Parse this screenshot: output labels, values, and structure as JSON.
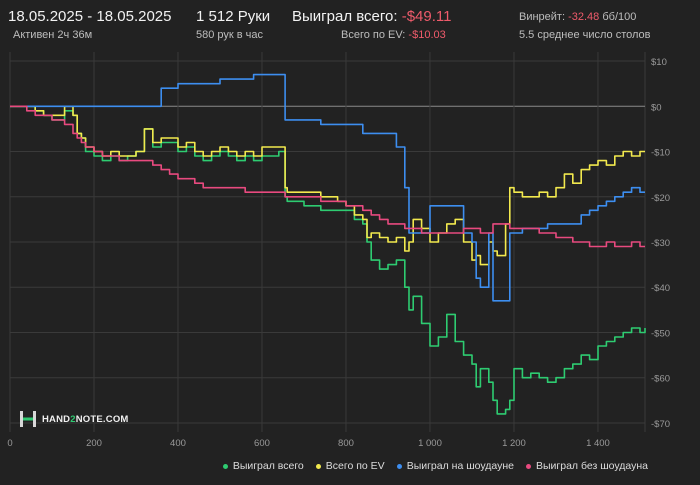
{
  "header": {
    "date_range": "18.05.2025 - 18.05.2025",
    "active": "Активен 2ч 36м",
    "hands": "1 512 Руки",
    "hands_per_hour": "580 рук в час",
    "won_label": "Выиграл всего:",
    "won_value": "-$49.11",
    "ev_label": "Всего по EV:",
    "ev_value": "-$10.03",
    "winrate_label": "Винрейт:",
    "winrate_value": "-32.48",
    "winrate_unit": "бб/100",
    "tables": "5.5 среднее число столов"
  },
  "logo": {
    "part1": "HAND",
    "part2": "2",
    "part3": "NOTE.COM"
  },
  "colors": {
    "background": "#222222",
    "grid": "#3a3a3a",
    "zero_line": "#8a8a8a",
    "total": "#2ecc71",
    "ev": "#f2e94e",
    "showdown": "#3d8ef0",
    "nonshowdown": "#e84a7f",
    "negative": "#ef5b6b"
  },
  "chart_data": {
    "type": "line",
    "x_ticks": [
      0,
      200,
      400,
      600,
      800,
      1000,
      1200,
      1400
    ],
    "x_tick_labels": [
      "0",
      "200",
      "400",
      "600",
      "800",
      "1 000",
      "1 200",
      "1 400"
    ],
    "xlim": [
      0,
      1512
    ],
    "y_ticks": [
      10,
      0,
      -10,
      -20,
      -30,
      -40,
      -50,
      -60,
      -70
    ],
    "y_tick_labels": [
      "$10",
      "$0",
      "-$10",
      "-$20",
      "-$30",
      "-$40",
      "-$50",
      "-$60",
      "-$70"
    ],
    "ylim": [
      -72,
      12
    ],
    "grid": true,
    "legend_position": "bottom-right",
    "series": [
      {
        "name": "Выиграл всего",
        "color": "#2ecc71",
        "x": [
          0,
          40,
          60,
          80,
          100,
          130,
          150,
          160,
          170,
          180,
          200,
          220,
          240,
          260,
          280,
          300,
          320,
          340,
          360,
          380,
          400,
          420,
          440,
          460,
          480,
          500,
          520,
          540,
          560,
          580,
          600,
          620,
          640,
          655,
          660,
          700,
          740,
          780,
          800,
          820,
          840,
          850,
          860,
          880,
          900,
          920,
          940,
          950,
          960,
          980,
          1000,
          1020,
          1040,
          1060,
          1080,
          1100,
          1110,
          1120,
          1140,
          1150,
          1160,
          1180,
          1190,
          1200,
          1220,
          1240,
          1260,
          1280,
          1300,
          1320,
          1340,
          1360,
          1380,
          1400,
          1420,
          1440,
          1460,
          1480,
          1500,
          1512
        ],
        "y": [
          0,
          0,
          -1,
          -2,
          -3,
          -1,
          -2,
          -6,
          -7,
          -10,
          -11,
          -12,
          -11,
          -12,
          -11,
          -10,
          -5,
          -9,
          -8,
          -8,
          -10,
          -9,
          -11,
          -12,
          -11,
          -10,
          -11,
          -12,
          -11,
          -12,
          -11,
          -11,
          -10,
          -20,
          -21,
          -22,
          -23,
          -23,
          -23,
          -25,
          -26,
          -30,
          -34,
          -36,
          -35,
          -34,
          -40,
          -45,
          -42,
          -48,
          -53,
          -51,
          -46,
          -52,
          -55,
          -57,
          -62,
          -58,
          -61,
          -65,
          -68,
          -67,
          -65,
          -58,
          -60,
          -59,
          -60,
          -61,
          -60,
          -58,
          -57,
          -55,
          -56,
          -53,
          -52,
          -51,
          -50,
          -49,
          -50,
          -49
        ]
      },
      {
        "name": "Всего по EV",
        "color": "#f2e94e",
        "x": [
          0,
          40,
          60,
          80,
          100,
          130,
          150,
          160,
          170,
          180,
          200,
          220,
          240,
          260,
          280,
          300,
          320,
          340,
          360,
          380,
          400,
          420,
          440,
          460,
          480,
          500,
          520,
          540,
          560,
          580,
          600,
          620,
          640,
          655,
          660,
          700,
          740,
          780,
          800,
          820,
          840,
          850,
          860,
          880,
          900,
          920,
          940,
          950,
          960,
          980,
          1000,
          1020,
          1040,
          1060,
          1080,
          1100,
          1110,
          1120,
          1140,
          1150,
          1160,
          1180,
          1190,
          1200,
          1220,
          1240,
          1260,
          1280,
          1300,
          1320,
          1340,
          1360,
          1380,
          1400,
          1420,
          1440,
          1460,
          1480,
          1500,
          1512
        ],
        "y": [
          0,
          0,
          -1,
          -2,
          -2,
          0,
          -2,
          -6,
          -7,
          -9,
          -10,
          -11,
          -10,
          -11,
          -11,
          -10,
          -5,
          -8,
          -7,
          -7,
          -9,
          -8,
          -10,
          -11,
          -10,
          -9,
          -10,
          -11,
          -10,
          -11,
          -9,
          -9,
          -9,
          -18,
          -19,
          -19,
          -20,
          -21,
          -22,
          -24,
          -25,
          -29,
          -28,
          -29,
          -30,
          -29,
          -32,
          -30,
          -25,
          -27,
          -30,
          -28,
          -26,
          -25,
          -30,
          -34,
          -33,
          -35,
          -30,
          -32,
          -33,
          -26,
          -18,
          -19,
          -20,
          -20,
          -19,
          -20,
          -18,
          -15,
          -17,
          -14,
          -13,
          -12,
          -13,
          -11,
          -10,
          -11,
          -10,
          -10
        ]
      },
      {
        "name": "Выиграл на шоудауне",
        "color": "#3d8ef0",
        "x": [
          0,
          40,
          60,
          80,
          100,
          130,
          150,
          160,
          170,
          180,
          200,
          220,
          240,
          260,
          280,
          300,
          320,
          340,
          360,
          380,
          400,
          420,
          440,
          460,
          480,
          500,
          520,
          540,
          560,
          580,
          600,
          620,
          640,
          655,
          660,
          700,
          740,
          780,
          800,
          820,
          840,
          850,
          860,
          880,
          900,
          920,
          940,
          950,
          960,
          980,
          1000,
          1020,
          1040,
          1060,
          1080,
          1100,
          1110,
          1120,
          1140,
          1150,
          1160,
          1180,
          1190,
          1200,
          1220,
          1240,
          1260,
          1280,
          1300,
          1320,
          1340,
          1360,
          1380,
          1400,
          1420,
          1440,
          1460,
          1480,
          1500,
          1512
        ],
        "y": [
          0,
          0,
          0,
          0,
          0,
          0,
          0,
          0,
          0,
          0,
          0,
          0,
          0,
          0,
          0,
          0,
          0,
          0,
          4,
          4,
          5,
          5,
          5,
          5,
          5,
          6,
          6,
          6,
          6,
          7,
          7,
          7,
          7,
          -3,
          -3,
          -3,
          -4,
          -4,
          -4,
          -4,
          -6,
          -6,
          -6,
          -6,
          -6,
          -9,
          -18,
          -28,
          -28,
          -28,
          -22,
          -22,
          -22,
          -22,
          -28,
          -30,
          -38,
          -40,
          -28,
          -43,
          -43,
          -43,
          -28,
          -28,
          -27,
          -27,
          -27,
          -26,
          -26,
          -26,
          -26,
          -24,
          -23,
          -22,
          -21,
          -20,
          -19,
          -18,
          -19,
          -19
        ]
      },
      {
        "name": "Выиграл без шоудауна",
        "color": "#e84a7f",
        "x": [
          0,
          40,
          60,
          80,
          100,
          130,
          150,
          160,
          170,
          180,
          200,
          220,
          240,
          260,
          280,
          300,
          320,
          340,
          360,
          380,
          400,
          420,
          440,
          460,
          480,
          500,
          520,
          540,
          560,
          580,
          600,
          620,
          640,
          655,
          660,
          700,
          740,
          780,
          800,
          820,
          840,
          850,
          860,
          880,
          900,
          920,
          940,
          950,
          960,
          980,
          1000,
          1020,
          1040,
          1060,
          1080,
          1100,
          1110,
          1120,
          1140,
          1150,
          1160,
          1180,
          1190,
          1200,
          1220,
          1240,
          1260,
          1280,
          1300,
          1320,
          1340,
          1360,
          1380,
          1400,
          1420,
          1440,
          1460,
          1480,
          1500,
          1512
        ],
        "y": [
          0,
          -1,
          -2,
          -2,
          -3,
          -4,
          -6,
          -7,
          -8,
          -9,
          -10,
          -11,
          -11,
          -12,
          -12,
          -12,
          -12,
          -13,
          -14,
          -15,
          -16,
          -16,
          -17,
          -18,
          -18,
          -18,
          -18,
          -18,
          -19,
          -19,
          -19,
          -19,
          -19,
          -20,
          -20,
          -20,
          -21,
          -21,
          -22,
          -22,
          -23,
          -23,
          -24,
          -25,
          -26,
          -26,
          -27,
          -27,
          -27,
          -28,
          -28,
          -28,
          -28,
          -28,
          -27,
          -27,
          -27,
          -28,
          -28,
          -26,
          -26,
          -26,
          -27,
          -27,
          -27,
          -27,
          -28,
          -28,
          -29,
          -29,
          -30,
          -30,
          -31,
          -31,
          -30,
          -31,
          -31,
          -30,
          -31,
          -31
        ]
      }
    ]
  }
}
